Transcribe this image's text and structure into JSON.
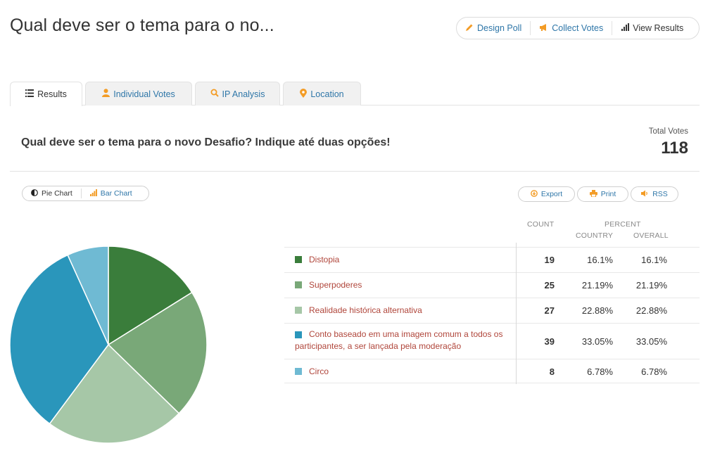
{
  "header": {
    "title": "Qual deve ser o tema para o no...",
    "actions": [
      {
        "label": "Design Poll",
        "icon": "pencil-icon"
      },
      {
        "label": "Collect Votes",
        "icon": "megaphone-icon"
      },
      {
        "label": "View Results",
        "icon": "bar-chart-icon"
      }
    ]
  },
  "tabs": [
    {
      "label": "Results",
      "icon": "list-icon",
      "active": true
    },
    {
      "label": "Individual Votes",
      "icon": "user-icon",
      "active": false
    },
    {
      "label": "IP Analysis",
      "icon": "search-icon",
      "active": false
    },
    {
      "label": "Location",
      "icon": "map-pin-icon",
      "active": false
    }
  ],
  "poll": {
    "question": "Qual deve ser o tema para o novo Desafio? Indique até duas opções!",
    "total_label": "Total Votes",
    "total_value": "118"
  },
  "chart_toggle": {
    "pie_label": "Pie Chart",
    "bar_label": "Bar Chart"
  },
  "tools": {
    "export_label": "Export",
    "print_label": "Print",
    "rss_label": "RSS"
  },
  "table": {
    "count_header": "COUNT",
    "percent_header": "PERCENT",
    "country_header": "COUNTRY",
    "overall_header": "OVERALL"
  },
  "chart_data": {
    "type": "pie",
    "categories": [
      "Distopia",
      "Superpoderes",
      "Realidade histórica alternativa",
      "Conto baseado em uma imagem comum a todos os participantes, a ser lançada pela moderação",
      "Circo"
    ],
    "values": [
      19,
      25,
      27,
      39,
      8
    ],
    "percent_country": [
      "16.1%",
      "21.19%",
      "22.88%",
      "33.05%",
      "6.78%"
    ],
    "percent_overall": [
      "16.1%",
      "21.19%",
      "22.88%",
      "33.05%",
      "6.78%"
    ],
    "colors": [
      "#3a7d3b",
      "#79a878",
      "#a6c7a7",
      "#2a96bb",
      "#6fbad3"
    ]
  }
}
